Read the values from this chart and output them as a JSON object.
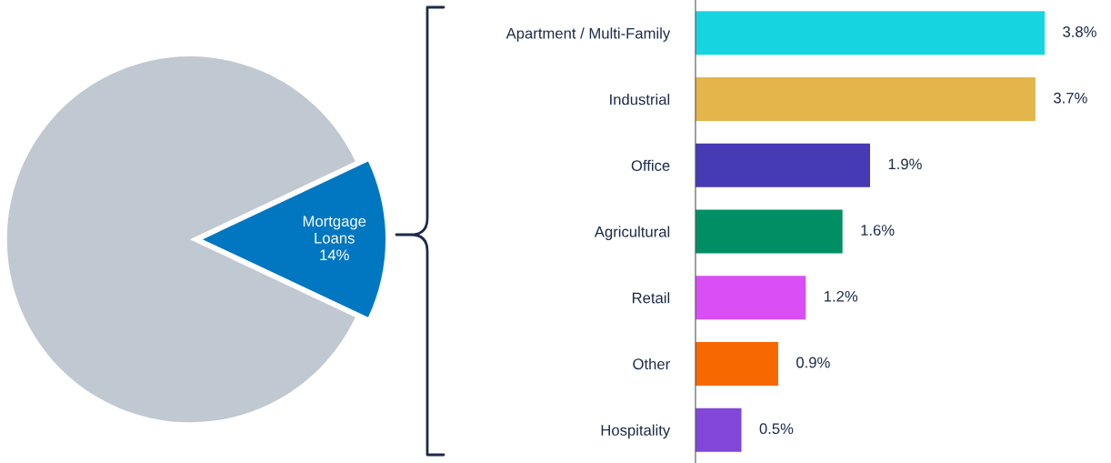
{
  "chart_data": [
    {
      "type": "pie",
      "categories": [
        null,
        "Mortgage Loans"
      ],
      "values": [
        86,
        14
      ],
      "colors": [
        "#c0c8d1",
        "#0077c0"
      ],
      "value_labels": [
        null,
        "14%"
      ]
    },
    {
      "type": "bar",
      "orientation": "horizontal",
      "categories": [
        "Apartment / Multi-Family",
        "Industrial",
        "Office",
        "Agricultural",
        "Retail",
        "Other",
        "Hospitality"
      ],
      "values": [
        3.8,
        3.7,
        1.9,
        1.6,
        1.2,
        0.9,
        0.5
      ],
      "colors": [
        "#17d5e0",
        "#e3b54a",
        "#463ab5",
        "#008f64",
        "#d94ef5",
        "#f76800",
        "#8246d8"
      ],
      "value_labels": [
        "3.8%",
        "3.7%",
        "1.9%",
        "1.6%",
        "1.2%",
        "0.9%",
        "0.5%"
      ]
    }
  ]
}
